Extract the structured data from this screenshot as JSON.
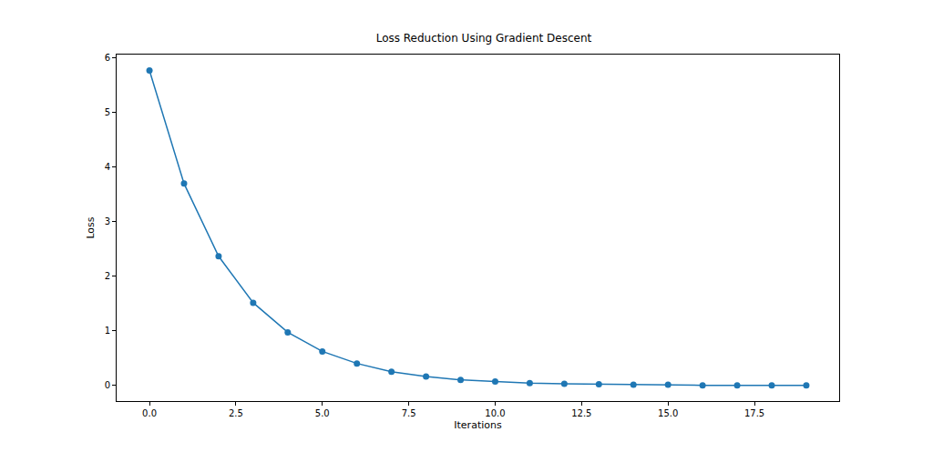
{
  "chart_data": {
    "type": "line",
    "title": "Loss Reduction Using Gradient Descent",
    "xlabel": "Iterations",
    "ylabel": "Loss",
    "x": [
      0,
      1,
      2,
      3,
      4,
      5,
      6,
      7,
      8,
      9,
      10,
      11,
      12,
      13,
      14,
      15,
      16,
      17,
      18,
      19
    ],
    "values": [
      5.76,
      3.69,
      2.36,
      1.51,
      0.97,
      0.62,
      0.4,
      0.25,
      0.16,
      0.1,
      0.07,
      0.04,
      0.03,
      0.02,
      0.01,
      0.01,
      0.0,
      0.0,
      0.0,
      0.0
    ],
    "color": "#1f77b4",
    "marker": "circle",
    "line_style": "solid",
    "grid": false,
    "xlim": [
      -0.95,
      19.95
    ],
    "ylim": [
      -0.288,
      6.05
    ],
    "xticks": [
      {
        "value": 0,
        "label": "0.0"
      },
      {
        "value": 2.5,
        "label": "2.5"
      },
      {
        "value": 5,
        "label": "5.0"
      },
      {
        "value": 7.5,
        "label": "7.5"
      },
      {
        "value": 10,
        "label": "10.0"
      },
      {
        "value": 12.5,
        "label": "12.5"
      },
      {
        "value": 15,
        "label": "15.0"
      },
      {
        "value": 17.5,
        "label": "17.5"
      }
    ],
    "yticks": [
      0,
      1,
      2,
      3,
      4,
      5,
      6
    ]
  }
}
